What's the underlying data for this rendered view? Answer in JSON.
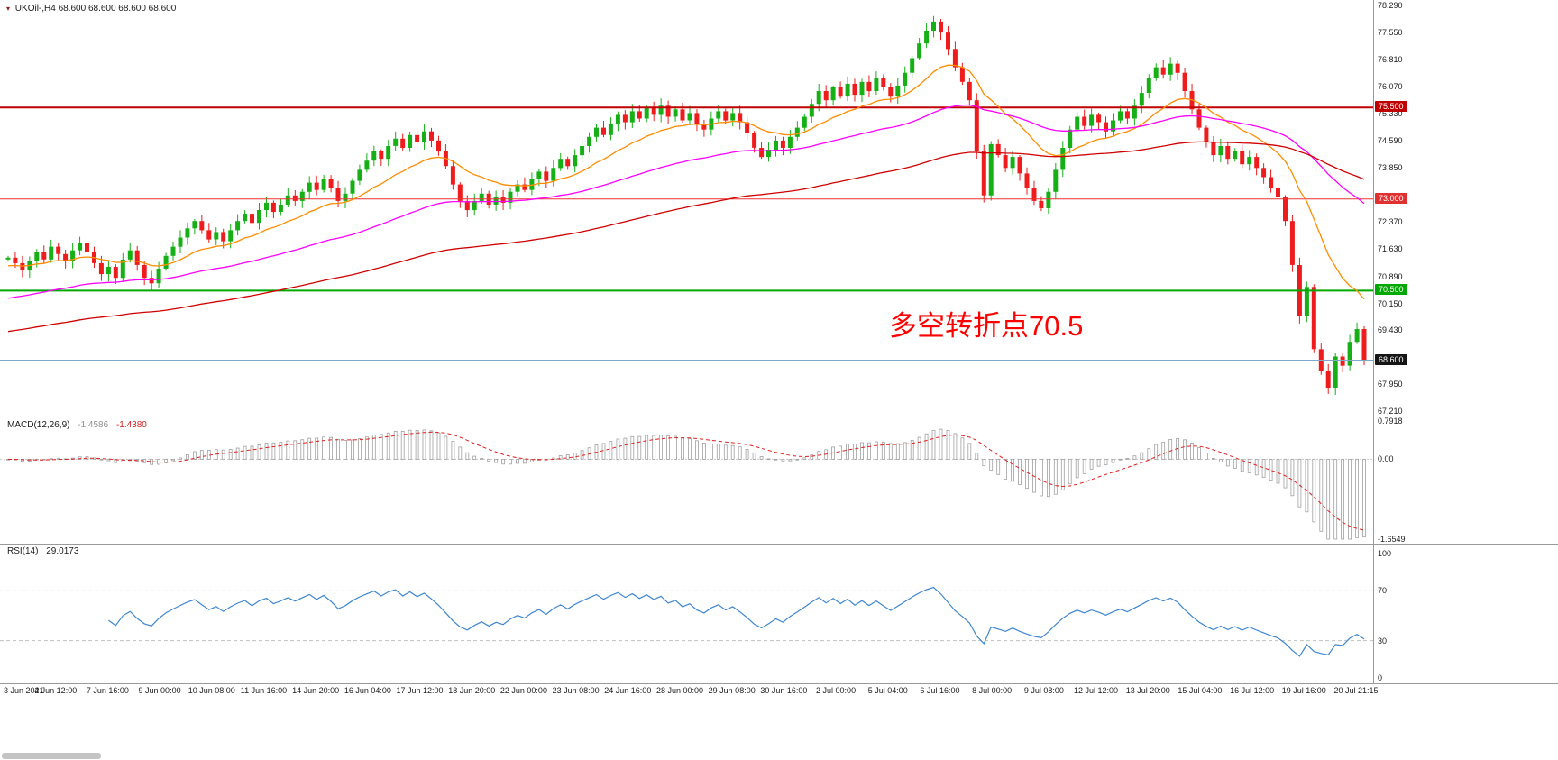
{
  "header": {
    "marker": "▾",
    "title": "UKOil-,H4 68.600 68.600 68.600 68.600"
  },
  "annotation": {
    "text": "多空转折点70.5",
    "color": "#FF0000"
  },
  "panels": {
    "macd": {
      "name": "MACD(12,26,9)",
      "main_value": "-1.4586",
      "signal_value": "-1.4380",
      "axis": [
        {
          "text": "0.7918",
          "value": 0.7918
        },
        {
          "text": "0.00",
          "value": 0
        },
        {
          "text": "-1.6549",
          "value": -1.6549
        }
      ]
    },
    "rsi": {
      "name": "RSI(14)",
      "value": "29.0173",
      "axis": [
        {
          "text": "100",
          "value": 100
        },
        {
          "text": "70",
          "value": 70
        },
        {
          "text": "30",
          "value": 30
        },
        {
          "text": "0",
          "value": 0
        }
      ]
    }
  },
  "price_axis": {
    "labels": [
      "78.290",
      "77.550",
      "76.810",
      "76.070",
      "75.330",
      "74.590",
      "73.850",
      "72.370",
      "71.630",
      "70.890",
      "70.150",
      "69.430",
      "67.950",
      "67.210"
    ]
  },
  "badges": [
    {
      "label": "75.500",
      "value": 75.5,
      "bg": "#C00000",
      "line_color": "#C00000",
      "line_width": 2
    },
    {
      "label": "73.000",
      "value": 73.0,
      "bg": "#E03030",
      "line_color": "#F03030",
      "line_width": 1
    },
    {
      "label": "70.500",
      "value": 70.5,
      "bg": "#00A800",
      "line_color": "#00A800",
      "line_width": 2
    },
    {
      "label": "68.600",
      "value": 68.6,
      "bg": "#151515",
      "line_color": "#7FA8C8",
      "line_width": 1
    }
  ],
  "time_axis": [
    "3 Jun 2021",
    "4 Jun 12:00",
    "7 Jun 16:00",
    "9 Jun 00:00",
    "10 Jun 08:00",
    "11 Jun 16:00",
    "14 Jun 20:00",
    "16 Jun 04:00",
    "17 Jun 12:00",
    "18 Jun 20:00",
    "22 Jun 00:00",
    "23 Jun 08:00",
    "24 Jun 16:00",
    "28 Jun 00:00",
    "29 Jun 08:00",
    "30 Jun 16:00",
    "2 Jul 00:00",
    "5 Jul 04:00",
    "6 Jul 16:00",
    "8 Jul 00:00",
    "9 Jul 08:00",
    "12 Jul 12:00",
    "13 Jul 20:00",
    "15 Jul 04:00",
    "16 Jul 12:00",
    "19 Jul 16:00",
    "20 Jul 21:15"
  ],
  "chart_data": {
    "type": "candlestick",
    "symbol": "UKOil-",
    "timeframe": "H4",
    "title": "UKOil-,H4",
    "last_price": 68.6,
    "price_range": [
      67.21,
      78.29
    ],
    "date_range": [
      "3 Jun 2021",
      "20 Jul 2021 21:15"
    ],
    "closes": [
      71.4,
      71.25,
      71.05,
      71.3,
      71.55,
      71.35,
      71.7,
      71.5,
      71.3,
      71.6,
      71.8,
      71.55,
      71.25,
      70.95,
      71.15,
      70.85,
      71.35,
      71.6,
      71.2,
      70.85,
      70.7,
      71.1,
      71.45,
      71.7,
      71.95,
      72.2,
      72.4,
      72.15,
      71.9,
      72.1,
      71.85,
      72.15,
      72.4,
      72.6,
      72.35,
      72.7,
      72.9,
      72.65,
      72.85,
      73.1,
      72.95,
      73.2,
      73.45,
      73.25,
      73.55,
      73.3,
      72.95,
      73.15,
      73.5,
      73.8,
      74.05,
      74.3,
      74.1,
      74.45,
      74.65,
      74.4,
      74.75,
      74.55,
      74.85,
      74.6,
      74.3,
      73.9,
      73.4,
      72.95,
      72.7,
      72.95,
      73.15,
      72.85,
      73.05,
      72.9,
      73.2,
      73.4,
      73.25,
      73.55,
      73.75,
      73.5,
      73.85,
      74.1,
      73.9,
      74.2,
      74.45,
      74.7,
      74.95,
      74.75,
      75.05,
      75.3,
      75.1,
      75.4,
      75.2,
      75.5,
      75.3,
      75.55,
      75.25,
      75.45,
      75.15,
      75.35,
      75.05,
      74.9,
      75.2,
      75.4,
      75.15,
      75.35,
      75.1,
      74.8,
      74.4,
      74.15,
      74.35,
      74.6,
      74.4,
      74.7,
      74.95,
      75.25,
      75.6,
      75.95,
      75.7,
      76.05,
      75.8,
      76.15,
      75.85,
      76.2,
      75.95,
      76.3,
      76.05,
      75.8,
      76.1,
      76.45,
      76.85,
      77.25,
      77.6,
      77.85,
      77.55,
      77.1,
      76.6,
      76.2,
      75.7,
      74.3,
      73.1,
      74.5,
      74.2,
      73.85,
      74.15,
      73.7,
      73.3,
      72.95,
      72.75,
      73.2,
      73.8,
      74.4,
      74.9,
      75.25,
      75.0,
      75.3,
      75.1,
      74.85,
      75.15,
      75.4,
      75.2,
      75.55,
      75.9,
      76.3,
      76.6,
      76.4,
      76.7,
      76.45,
      75.95,
      75.45,
      74.95,
      74.55,
      74.2,
      74.45,
      74.1,
      74.3,
      73.95,
      74.15,
      73.85,
      73.6,
      73.3,
      73.05,
      72.4,
      71.2,
      69.8,
      70.6,
      68.9,
      68.3,
      67.85,
      68.7,
      68.45,
      69.1,
      69.45,
      68.6
    ],
    "colors": {
      "bull": "#16B016",
      "bear": "#EE1C1C"
    },
    "moving_averages": [
      {
        "period": 16,
        "seed": 71.15,
        "color": "#FF8C00"
      },
      {
        "period": 55,
        "seed": 70.25,
        "color": "#FF00FF"
      },
      {
        "period": 120,
        "seed": 69.35,
        "color": "#D00000"
      }
    ],
    "hlines": [
      75.5,
      73.0,
      70.5,
      68.6
    ],
    "indicators": [
      {
        "name": "MACD",
        "params": [
          12,
          26,
          9
        ],
        "main": -1.4586,
        "signal": -1.438,
        "range": [
          -1.6549,
          0.7918
        ]
      },
      {
        "name": "RSI",
        "params": [
          14
        ],
        "value": 29.0173,
        "range": [
          0,
          100
        ],
        "levels": [
          70,
          30
        ]
      }
    ]
  }
}
